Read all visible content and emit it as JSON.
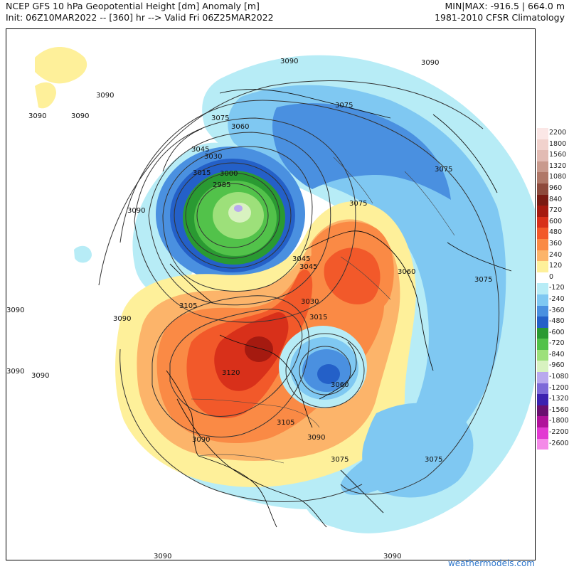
{
  "header": {
    "title_line1": "NCEP GFS 10 hPa Geopotential Height [dm] Anomaly [m]",
    "title_line2": "Init: 06Z10MAR2022 -- [360] hr --> Valid Fri 06Z25MAR2022",
    "minmax": "MIN|MAX: -916.5 | 664.0 m",
    "climatology": "1981-2010 CFSR Climatology"
  },
  "colorbar": [
    {
      "label": "2200",
      "color": "#fbe7e6"
    },
    {
      "label": "1800",
      "color": "#f1d2cd"
    },
    {
      "label": "1560",
      "color": "#e2bbb3"
    },
    {
      "label": "1320",
      "color": "#c99a8d"
    },
    {
      "label": "1080",
      "color": "#b07868"
    },
    {
      "label": "960",
      "color": "#8e4a3c"
    },
    {
      "label": "840",
      "color": "#7a1a12"
    },
    {
      "label": "720",
      "color": "#a51a10"
    },
    {
      "label": "600",
      "color": "#d8301a"
    },
    {
      "label": "480",
      "color": "#f2592a"
    },
    {
      "label": "360",
      "color": "#fa8a45"
    },
    {
      "label": "240",
      "color": "#fcb46a"
    },
    {
      "label": "120",
      "color": "#fef09a"
    },
    {
      "label": "0",
      "color": "#ffffff"
    },
    {
      "label": "-120",
      "color": "#b7ecf6"
    },
    {
      "label": "-240",
      "color": "#7fc8f2"
    },
    {
      "label": "-360",
      "color": "#4a90e0"
    },
    {
      "label": "-480",
      "color": "#2460c8"
    },
    {
      "label": "-600",
      "color": "#2a9a32"
    },
    {
      "label": "-720",
      "color": "#52c24a"
    },
    {
      "label": "-840",
      "color": "#9de07a"
    },
    {
      "label": "-960",
      "color": "#d8f2c0"
    },
    {
      "label": "-1080",
      "color": "#b9a9ee"
    },
    {
      "label": "-1200",
      "color": "#7d6ad8"
    },
    {
      "label": "-1320",
      "color": "#3c22b0"
    },
    {
      "label": "-1560",
      "color": "#6a1070"
    },
    {
      "label": "-1800",
      "color": "#b0129a"
    },
    {
      "label": "-2200",
      "color": "#e23ad2"
    },
    {
      "label": "-2600",
      "color": "#f48ae8"
    }
  ],
  "contour_labels": {
    "c3090": "3090",
    "c3075": "3075",
    "c3060": "3060",
    "c3045": "3045",
    "c3030": "3030",
    "c3015": "3015",
    "c3000": "3000",
    "c2985": "2985",
    "c3105": "3105",
    "c3120": "3120"
  },
  "credit": "weathermodels.com"
}
